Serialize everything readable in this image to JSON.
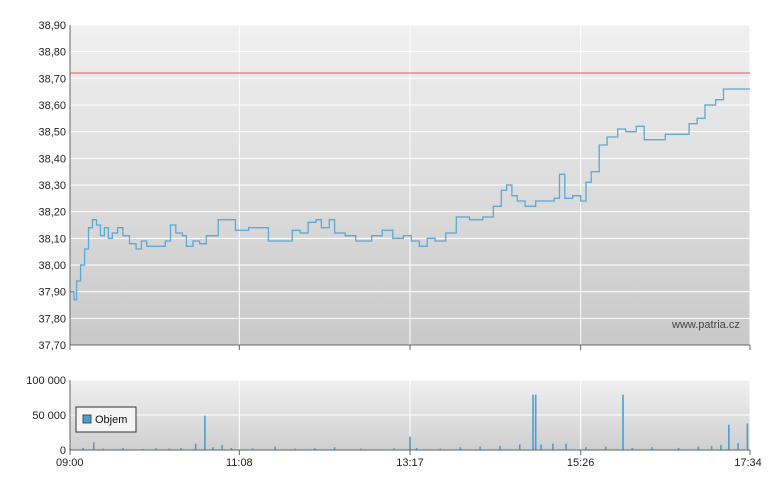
{
  "watermark": "www.patria.cz",
  "colors": {
    "price_line": "#5aa9d6",
    "reference_line": "#e05a5a",
    "volume_bar": "#4a9fd0",
    "grid": "#ffffff",
    "axis": "#666666"
  },
  "chart_data": [
    {
      "type": "line",
      "title": "",
      "xlabel": "",
      "ylabel": "",
      "x_tick_labels": [
        "09:00",
        "11:08",
        "13:17",
        "15:26",
        "17:34"
      ],
      "y_tick_labels": [
        "37,70",
        "37,80",
        "37,90",
        "38,00",
        "38,10",
        "38,20",
        "38,30",
        "38,40",
        "38,50",
        "38,60",
        "38,70",
        "38,80",
        "38,90"
      ],
      "ylim": [
        37.7,
        38.9
      ],
      "xlim": [
        "09:00",
        "17:34"
      ],
      "grid": true,
      "reference_line": {
        "value": 38.72
      },
      "series": [
        {
          "name": "",
          "points": [
            [
              "09:00",
              37.9
            ],
            [
              "09:03",
              37.87
            ],
            [
              "09:05",
              37.94
            ],
            [
              "09:08",
              38.0
            ],
            [
              "09:11",
              38.06
            ],
            [
              "09:14",
              38.14
            ],
            [
              "09:17",
              38.17
            ],
            [
              "09:20",
              38.15
            ],
            [
              "09:23",
              38.11
            ],
            [
              "09:26",
              38.14
            ],
            [
              "09:29",
              38.1
            ],
            [
              "09:32",
              38.12
            ],
            [
              "09:36",
              38.14
            ],
            [
              "09:40",
              38.11
            ],
            [
              "09:45",
              38.08
            ],
            [
              "09:50",
              38.06
            ],
            [
              "09:54",
              38.09
            ],
            [
              "09:58",
              38.07
            ],
            [
              "10:05",
              38.07
            ],
            [
              "10:12",
              38.09
            ],
            [
              "10:16",
              38.15
            ],
            [
              "10:20",
              38.12
            ],
            [
              "10:25",
              38.11
            ],
            [
              "10:28",
              38.07
            ],
            [
              "10:33",
              38.09
            ],
            [
              "10:38",
              38.08
            ],
            [
              "10:43",
              38.11
            ],
            [
              "10:48",
              38.11
            ],
            [
              "10:52",
              38.17
            ],
            [
              "10:58",
              38.17
            ],
            [
              "11:05",
              38.13
            ],
            [
              "11:15",
              38.14
            ],
            [
              "11:25",
              38.14
            ],
            [
              "11:30",
              38.09
            ],
            [
              "11:40",
              38.09
            ],
            [
              "11:48",
              38.13
            ],
            [
              "11:54",
              38.12
            ],
            [
              "12:00",
              38.16
            ],
            [
              "12:06",
              38.17
            ],
            [
              "12:10",
              38.14
            ],
            [
              "12:16",
              38.17
            ],
            [
              "12:20",
              38.12
            ],
            [
              "12:28",
              38.11
            ],
            [
              "12:36",
              38.09
            ],
            [
              "12:48",
              38.11
            ],
            [
              "12:56",
              38.13
            ],
            [
              "13:04",
              38.1
            ],
            [
              "13:12",
              38.11
            ],
            [
              "13:18",
              38.09
            ],
            [
              "13:24",
              38.07
            ],
            [
              "13:30",
              38.1
            ],
            [
              "13:36",
              38.09
            ],
            [
              "13:44",
              38.12
            ],
            [
              "13:52",
              38.18
            ],
            [
              "14:02",
              38.17
            ],
            [
              "14:12",
              38.18
            ],
            [
              "14:20",
              38.22
            ],
            [
              "14:26",
              38.28
            ],
            [
              "14:30",
              38.3
            ],
            [
              "14:34",
              38.26
            ],
            [
              "14:38",
              38.24
            ],
            [
              "14:44",
              38.22
            ],
            [
              "14:52",
              38.24
            ],
            [
              "15:06",
              38.25
            ],
            [
              "15:10",
              38.34
            ],
            [
              "15:14",
              38.25
            ],
            [
              "15:20",
              38.26
            ],
            [
              "15:26",
              38.24
            ],
            [
              "15:30",
              38.31
            ],
            [
              "15:34",
              38.35
            ],
            [
              "15:40",
              38.45
            ],
            [
              "15:46",
              38.48
            ],
            [
              "15:54",
              38.51
            ],
            [
              "16:00",
              38.5
            ],
            [
              "16:08",
              38.52
            ],
            [
              "16:14",
              38.47
            ],
            [
              "16:22",
              38.47
            ],
            [
              "16:30",
              38.49
            ],
            [
              "16:40",
              38.49
            ],
            [
              "16:48",
              38.53
            ],
            [
              "16:54",
              38.55
            ],
            [
              "17:00",
              38.6
            ],
            [
              "17:08",
              38.62
            ],
            [
              "17:14",
              38.66
            ],
            [
              "17:22",
              38.66
            ],
            [
              "17:34",
              38.66
            ]
          ]
        }
      ]
    },
    {
      "type": "bar",
      "title": "",
      "xlabel": "",
      "ylabel": "",
      "x_tick_labels": [
        "09:00",
        "11:08",
        "13:17",
        "15:26",
        "17:34"
      ],
      "y_tick_labels": [
        "0",
        "50 000",
        "100 000"
      ],
      "ylim": [
        0,
        100000
      ],
      "grid": true,
      "legend": {
        "position": "left",
        "entries": [
          "Objem"
        ]
      },
      "series": [
        {
          "name": "Objem",
          "points": [
            [
              "09:00",
              2000
            ],
            [
              "09:10",
              3000
            ],
            [
              "09:18",
              11000
            ],
            [
              "09:25",
              2000
            ],
            [
              "09:40",
              3000
            ],
            [
              "09:55",
              1500
            ],
            [
              "10:05",
              2500
            ],
            [
              "10:15",
              2000
            ],
            [
              "10:24",
              3000
            ],
            [
              "10:35",
              9000
            ],
            [
              "10:42",
              49000
            ],
            [
              "10:48",
              4000
            ],
            [
              "10:55",
              7000
            ],
            [
              "11:02",
              3000
            ],
            [
              "11:18",
              2500
            ],
            [
              "11:35",
              5000
            ],
            [
              "11:50",
              2000
            ],
            [
              "12:05",
              3000
            ],
            [
              "12:20",
              4000
            ],
            [
              "12:40",
              2000
            ],
            [
              "13:05",
              2500
            ],
            [
              "13:17",
              19000
            ],
            [
              "13:22",
              3000
            ],
            [
              "13:40",
              2000
            ],
            [
              "13:55",
              4000
            ],
            [
              "14:10",
              5000
            ],
            [
              "14:25",
              6000
            ],
            [
              "14:40",
              8000
            ],
            [
              "14:50",
              79000
            ],
            [
              "14:52",
              79000
            ],
            [
              "14:56",
              8000
            ],
            [
              "15:05",
              9000
            ],
            [
              "15:15",
              9000
            ],
            [
              "15:30",
              4000
            ],
            [
              "15:45",
              5000
            ],
            [
              "15:58",
              79000
            ],
            [
              "16:05",
              3000
            ],
            [
              "16:20",
              4000
            ],
            [
              "16:40",
              3000
            ],
            [
              "16:55",
              5000
            ],
            [
              "17:05",
              6000
            ],
            [
              "17:12",
              7000
            ],
            [
              "17:18",
              36000
            ],
            [
              "17:25",
              10000
            ],
            [
              "17:32",
              38000
            ]
          ]
        }
      ]
    }
  ]
}
